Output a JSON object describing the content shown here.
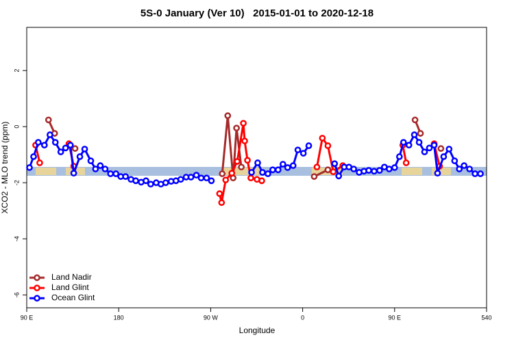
{
  "chart_data": {
    "type": "line",
    "title": "5S-0 January (Ver 10)   2015-01-01 to 2020-12-18",
    "xlabel": "Longitude",
    "ylabel": "XCO2 - MLO trend (ppm)",
    "xlim": [
      90,
      540
    ],
    "xticks": [
      {
        "value": 90,
        "label": "90 E"
      },
      180,
      {
        "value": 270,
        "label": "90 W"
      },
      {
        "value": 360,
        "label": "0"
      },
      {
        "value": 450,
        "label": "90 E"
      },
      540
    ],
    "ylim": [
      -6.46,
      3.54
    ],
    "yticks": [
      -6,
      -4,
      -2,
      0,
      2
    ],
    "legend": "bottom-left",
    "series": [
      {
        "name": "Land Nadir",
        "color": "#a52a2a",
        "x": [
          111.3,
          117.3,
          null,
          137.3,
          null,
          281.3,
          286.7,
          292,
          295.3,
          300,
          null,
          371.3,
          384.7,
          null,
          470,
          475.3,
          null,
          495.3
        ],
        "values": [
          0.24,
          -0.24,
          null,
          -0.78,
          null,
          -1.68,
          0.39,
          -1.83,
          -0.05,
          -1.44,
          null,
          -1.78,
          -1.54,
          null,
          0.24,
          -0.24,
          null,
          -0.78
        ]
      },
      {
        "name": "Land Glint",
        "color": "#ff0000",
        "x": [
          98.7,
          102.7,
          null,
          131.3,
          136,
          null,
          278.7,
          280.7,
          284.7,
          290.7,
          296,
          302,
          303.3,
          306,
          309.3,
          315.3,
          320,
          null,
          374,
          379.3,
          384.7,
          390,
          399.3,
          null,
          458,
          461.3,
          null,
          488.7,
          494
        ],
        "values": [
          -0.66,
          -1.29,
          null,
          -0.61,
          -1.41,
          null,
          -2.39,
          -2.71,
          -1.9,
          -1.66,
          -1.24,
          0.12,
          -0.51,
          -1.2,
          -1.83,
          -1.88,
          -1.93,
          null,
          -1.44,
          -0.41,
          -0.68,
          -1.61,
          -1.39,
          null,
          -0.66,
          -1.29,
          null,
          -0.61,
          -1.41
        ]
      },
      {
        "name": "Ocean Glint",
        "color": "#0000ff",
        "x": [
          92.7,
          96.7,
          101.3,
          107.3,
          112.7,
          118,
          123.3,
          128,
          132.7,
          136,
          142,
          146.7,
          152.7,
          157.3,
          162,
          166.7,
          172,
          177.3,
          182,
          186.7,
          192,
          196.7,
          202,
          206.7,
          211.3,
          216.7,
          221.3,
          226,
          231.3,
          236,
          240.7,
          246,
          250.7,
          256,
          260.7,
          266,
          270.7,
          null,
          310,
          316,
          320.7,
          326,
          330.7,
          336,
          340.7,
          345.3,
          350.7,
          355.3,
          360.7,
          366,
          null,
          391.3,
          395.3,
          400.7,
          405.3,
          410,
          415.3,
          420,
          424.7,
          430,
          435.3,
          440,
          444.7,
          450,
          454.7,
          458.7,
          464,
          469.3,
          474,
          479.3,
          484,
          488.7,
          492,
          498,
          503.3,
          508.7,
          513.3,
          518,
          523.3,
          528.7,
          534
        ],
        "values": [
          -1.46,
          -1.07,
          -0.56,
          -0.66,
          -0.29,
          -0.56,
          -0.9,
          -0.76,
          -0.66,
          -1.66,
          -1.07,
          -0.8,
          -1.22,
          -1.51,
          -1.39,
          -1.51,
          -1.68,
          -1.68,
          -1.78,
          -1.78,
          -1.88,
          -1.93,
          -1.98,
          -1.93,
          -2.05,
          -2.0,
          -2.05,
          -2.0,
          -1.95,
          -1.93,
          -1.88,
          -1.8,
          -1.8,
          -1.73,
          -1.83,
          -1.83,
          -1.93,
          null,
          -1.63,
          -1.29,
          -1.63,
          -1.68,
          -1.54,
          -1.54,
          -1.34,
          -1.46,
          -1.39,
          -0.83,
          -0.95,
          -0.68,
          null,
          -1.32,
          -1.76,
          -1.44,
          -1.44,
          -1.51,
          -1.63,
          -1.59,
          -1.56,
          -1.59,
          -1.56,
          -1.44,
          -1.51,
          -1.46,
          -1.07,
          -0.56,
          -0.66,
          -0.29,
          -0.56,
          -0.9,
          -0.76,
          -0.66,
          -1.66,
          -1.07,
          -0.8,
          -1.22,
          -1.51,
          -1.39,
          -1.51,
          -1.68,
          -1.68
        ]
      }
    ]
  }
}
